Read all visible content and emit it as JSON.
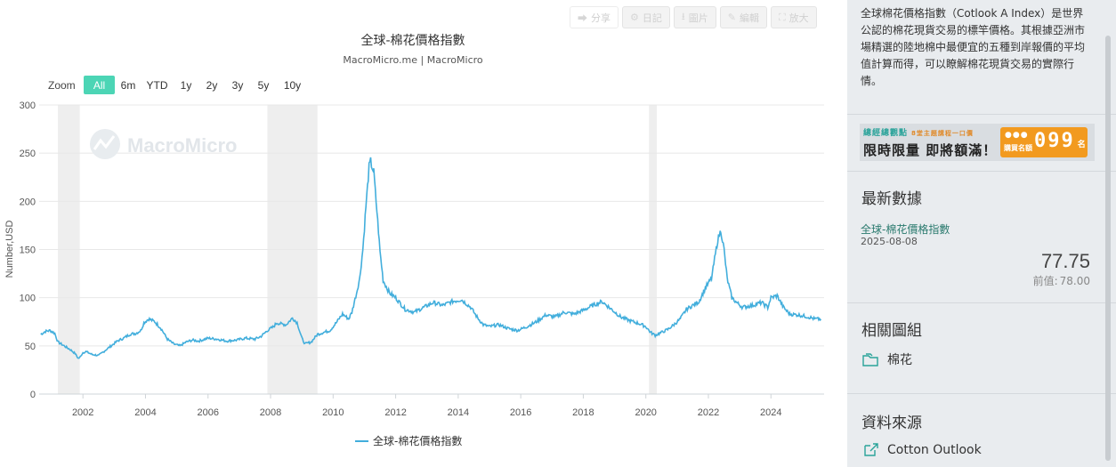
{
  "toolbar": {
    "buttons": [
      {
        "label": "分享",
        "icon": "share-icon"
      },
      {
        "label": "日記",
        "icon": "gear-icon"
      },
      {
        "label": "圖片",
        "icon": "download-icon"
      },
      {
        "label": "編輯",
        "icon": "pencil-icon"
      },
      {
        "label": "放大",
        "icon": "expand-icon"
      }
    ]
  },
  "chart": {
    "title": "全球-棉花價格指數",
    "subtitle": "MacroMicro.me | MacroMicro",
    "watermark": "MacroMicro",
    "zoom_label": "Zoom",
    "zoom_options": [
      "All",
      "6m",
      "YTD",
      "1y",
      "2y",
      "3y",
      "5y",
      "10y"
    ],
    "zoom_selected": "All",
    "ylabel": "Number,USD",
    "legend_label": "全球-棉花價格指數",
    "colors": {
      "line": "#42aedc",
      "recession": "#eeeeee",
      "zoom_active": "#4cd5b5",
      "grid": "#e8e8e8"
    }
  },
  "chart_data": {
    "type": "line",
    "title": "全球-棉花價格指數",
    "subtitle": "MacroMicro.me | MacroMicro",
    "ylabel": "Number,USD",
    "xlabel": "",
    "ylim": [
      0,
      300
    ],
    "yticks": [
      0,
      50,
      100,
      150,
      200,
      250,
      300
    ],
    "xlim": [
      2000.6,
      2025.7
    ],
    "xticks": [
      "2002",
      "2004",
      "2006",
      "2008",
      "2010",
      "2012",
      "2014",
      "2016",
      "2018",
      "2020",
      "2022",
      "2024"
    ],
    "grid": true,
    "legend": "bottom-center",
    "shaded_periods": [
      {
        "start": 2001.2,
        "end": 2001.9
      },
      {
        "start": 2007.9,
        "end": 2009.5
      },
      {
        "start": 2020.1,
        "end": 2020.35
      }
    ],
    "series": [
      {
        "name": "全球-棉花價格指數",
        "x": [
          2000.65,
          2000.8,
          2000.95,
          2001.1,
          2001.2,
          2001.4,
          2001.6,
          2001.75,
          2001.85,
          2001.9,
          2002.0,
          2002.1,
          2002.3,
          2002.5,
          2002.7,
          2002.9,
          2003.1,
          2003.3,
          2003.5,
          2003.7,
          2003.85,
          2003.95,
          2004.1,
          2004.3,
          2004.5,
          2004.7,
          2004.9,
          2005.1,
          2005.3,
          2005.5,
          2005.7,
          2006.0,
          2006.3,
          2006.6,
          2006.9,
          2007.2,
          2007.5,
          2007.7,
          2007.9,
          2008.1,
          2008.2,
          2008.3,
          2008.5,
          2008.7,
          2008.85,
          2009.0,
          2009.1,
          2009.3,
          2009.5,
          2009.7,
          2009.9,
          2010.1,
          2010.3,
          2010.5,
          2010.6,
          2010.75,
          2010.85,
          2010.95,
          2011.05,
          2011.15,
          2011.2,
          2011.3,
          2011.4,
          2011.5,
          2011.6,
          2011.8,
          2012.0,
          2012.3,
          2012.6,
          2012.9,
          2013.2,
          2013.5,
          2013.8,
          2014.1,
          2014.4,
          2014.6,
          2014.8,
          2015.0,
          2015.3,
          2015.6,
          2015.9,
          2016.2,
          2016.5,
          2016.8,
          2017.1,
          2017.4,
          2017.7,
          2018.0,
          2018.3,
          2018.6,
          2018.9,
          2019.2,
          2019.5,
          2019.8,
          2020.0,
          2020.15,
          2020.3,
          2020.5,
          2020.7,
          2020.9,
          2021.1,
          2021.3,
          2021.5,
          2021.7,
          2021.9,
          2022.1,
          2022.2,
          2022.3,
          2022.4,
          2022.5,
          2022.6,
          2022.75,
          2022.9,
          2023.1,
          2023.4,
          2023.7,
          2023.9,
          2024.0,
          2024.2,
          2024.4,
          2024.6,
          2024.9,
          2025.2,
          2025.4,
          2025.6
        ],
        "values": [
          62,
          65,
          66,
          63,
          54,
          50,
          46,
          42,
          37,
          38,
          43,
          44,
          41,
          40,
          45,
          50,
          55,
          58,
          62,
          63,
          66,
          74,
          78,
          75,
          68,
          57,
          52,
          50,
          54,
          56,
          55,
          58,
          57,
          55,
          56,
          58,
          57,
          60,
          66,
          70,
          74,
          73,
          72,
          79,
          74,
          58,
          52,
          54,
          62,
          64,
          66,
          74,
          83,
          78,
          85,
          105,
          120,
          150,
          195,
          235,
          241,
          230,
          190,
          148,
          118,
          105,
          100,
          88,
          85,
          90,
          95,
          92,
          96,
          98,
          90,
          80,
          72,
          70,
          72,
          68,
          66,
          70,
          75,
          82,
          80,
          85,
          83,
          87,
          92,
          96,
          88,
          80,
          76,
          73,
          70,
          64,
          61,
          64,
          67,
          72,
          78,
          88,
          92,
          96,
          110,
          120,
          140,
          160,
          170,
          150,
          120,
          100,
          95,
          90,
          92,
          95,
          90,
          100,
          102,
          90,
          83,
          82,
          80,
          78,
          77.75
        ]
      }
    ]
  },
  "sidebar": {
    "description": "全球棉花價格指數（Cotlook A Index）是世界公認的棉花現貨交易的標竿價格。其根據亞洲市場精選的陸地棉中最便宜的五種到岸報價的平均值計算而得，可以瞭解棉花現貨交易的實際行情。",
    "banner": {
      "top_text": "總經總觀點",
      "top_small": "8堂主題講程一口價",
      "main_text": "限時限量 即將額滿！",
      "count_label": "購買名額",
      "digits": "099",
      "suffix": "名"
    },
    "latest": {
      "title": "最新數據",
      "series_name": "全球-棉花價格指數",
      "date": "2025-08-08",
      "value": "77.75",
      "prev_label": "前值:",
      "prev_value": "78.00"
    },
    "related": {
      "title": "相關圖組",
      "link": "棉花"
    },
    "source": {
      "title": "資料來源",
      "link": "Cotton Outlook"
    }
  }
}
